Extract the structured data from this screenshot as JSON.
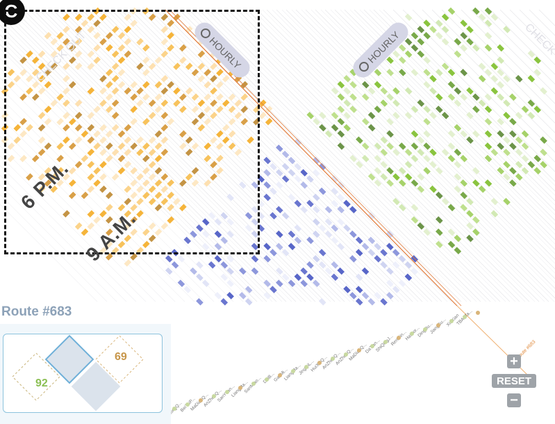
{
  "panel": {
    "label": "C"
  },
  "time_labels": {
    "pm": "6 P.M.",
    "am": "9 A.M."
  },
  "check_out_label": "CHECK OUT",
  "hourly_badges": [
    "HOURLY",
    "HOURLY"
  ],
  "route": {
    "title": "Route #683",
    "tag": "Route #683",
    "value_left": "92",
    "value_right": "69"
  },
  "controls": {
    "zoom_in": "+",
    "reset": "RESET",
    "zoom_out": "−"
  },
  "colors": {
    "orange": "#f5b43a",
    "green": "#8ac43f",
    "purple": "#5866c8",
    "route_line": "#e07a3a",
    "badge": "#d5d6e6",
    "text": "#444444"
  },
  "station_labels": [
    "TBAoTa...",
    "XinXian",
    "JiangSu...",
    "DingDu...",
    "HaiDor...",
    "RenMin...",
    "ShiQingJ...",
    "DaTian...",
    "MaDianQ...",
    "AnZhenQ...",
    "AnZhenQ...",
    "HuiXinQ...",
    "JingQiL...",
    "LiangMa...",
    "GaoMi...",
    "DaiB...",
    "SanMiao...",
    "LiangMa...",
    "SanYuan...",
    "AnZhenQ...",
    "MaDianQ...",
    "BeiTaiP...",
    "ZhongQ...",
    "XiaoYu..."
  ]
}
